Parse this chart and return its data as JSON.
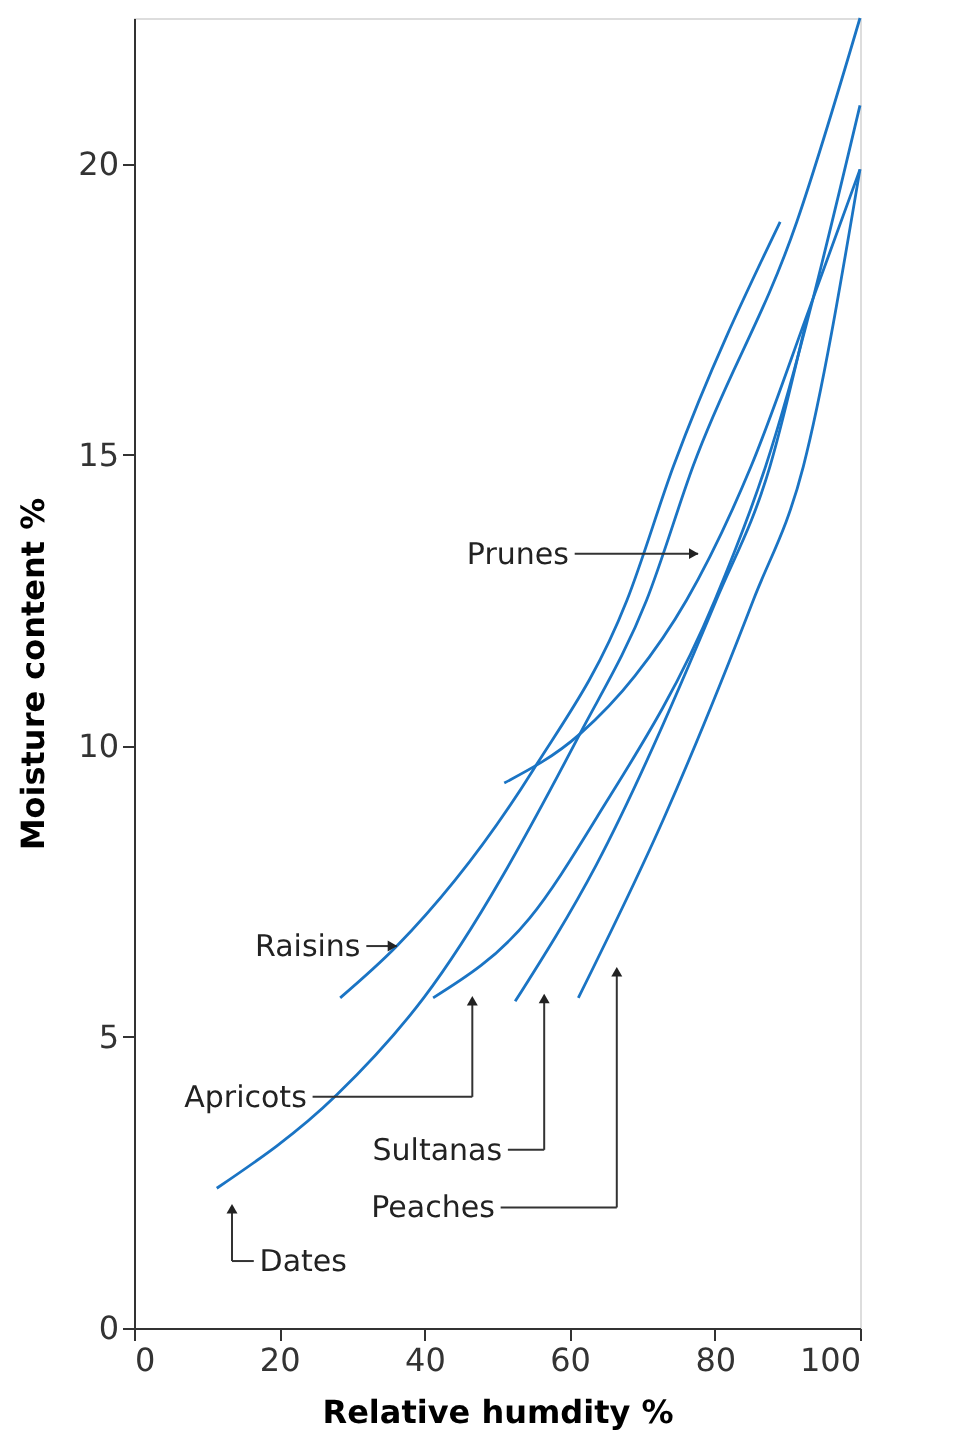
{
  "chart_data": {
    "type": "line",
    "xlabel": "Relative humdity %",
    "ylabel": "Moisture content %",
    "xlim": [
      0,
      100
    ],
    "ylim": [
      0,
      22.5
    ],
    "xticks": [
      0,
      20,
      40,
      60,
      80,
      100
    ],
    "yticks": [
      0,
      5,
      10,
      15,
      20
    ],
    "grid": false,
    "legend": false,
    "marker": "none",
    "line_style": "solid",
    "series": [
      {
        "color": "#1a74c4",
        "x": [
          11.4,
          27.9,
          39.9,
          61.4,
          70.6,
          77,
          91.3,
          100
        ],
        "values": [
          2.4,
          4.0,
          5.67,
          10.2,
          12.5,
          14.8,
          19.0,
          22.5
        ]
      },
      {
        "color": "#1a74c4",
        "x": [
          28.4,
          36.2,
          55,
          67.9,
          74.3,
          89
        ],
        "values": [
          5.67,
          6.56,
          9.59,
          12.5,
          14.8,
          19.0
        ]
      },
      {
        "color": "#1a74c4",
        "x": [
          51,
          61.4,
          69,
          76.1,
          85,
          93,
          100
        ],
        "values": [
          9.36,
          10.2,
          11.2,
          12.5,
          14.8,
          17.5,
          19.9
        ]
      },
      {
        "color": "#1a74c4",
        "x": [
          41.2,
          54.5,
          63.7,
          80,
          87,
          100
        ],
        "values": [
          5.67,
          7.04,
          8.76,
          12.5,
          14.8,
          21.0
        ]
      },
      {
        "color": "#1a74c4",
        "x": [
          52.5,
          63.7,
          80.2,
          87.6,
          92.6
        ],
        "values": [
          5.61,
          7.96,
          12.5,
          14.8,
          17.3
        ]
      },
      {
        "color": "#1a74c4",
        "x": [
          61.2,
          73,
          85.3,
          92.2,
          100
        ],
        "values": [
          5.67,
          8.76,
          12.5,
          14.8,
          19.9
        ]
      }
    ],
    "annotations": [
      "Dates",
      "Raisins",
      "Prunes",
      "Apricots",
      "Sultanas",
      "Peaches"
    ]
  }
}
